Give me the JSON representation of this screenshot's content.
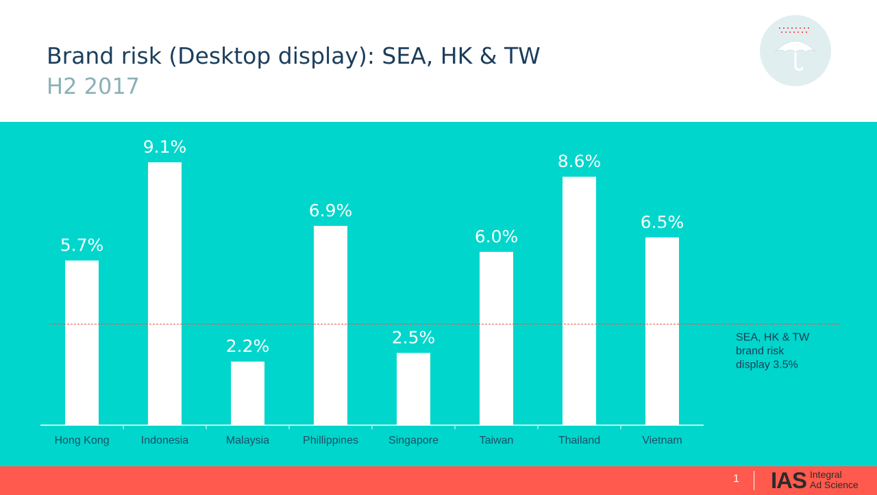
{
  "header": {
    "title": "Brand risk (Desktop display): SEA, HK & TW",
    "subtitle": "H2 2017",
    "logo_icon": "umbrella-icon"
  },
  "chart_data": {
    "type": "bar",
    "categories": [
      "Hong Kong",
      "Indonesia",
      "Malaysia",
      "Phillippines",
      "Singapore",
      "Taiwan",
      "Thailand",
      "Vietnam"
    ],
    "values": [
      5.7,
      9.1,
      2.2,
      6.9,
      2.5,
      6.0,
      8.6,
      6.5
    ],
    "data_labels": [
      "5.7%",
      "9.1%",
      "2.2%",
      "6.9%",
      "2.5%",
      "6.0%",
      "8.6%",
      "6.5%"
    ],
    "unit": "%",
    "ylim": [
      0,
      10.5
    ],
    "grid": false,
    "reference_line": {
      "value": 3.5,
      "label_lines": [
        "SEA, HK & TW",
        "brand risk",
        "display 3.5%"
      ],
      "color": "#e8504a"
    },
    "bar_color": "#ffffff",
    "background_color": "#00d6cb"
  },
  "footer": {
    "page_number": "1",
    "brand_mark": "IAS",
    "brand_name_line1": "Integral",
    "brand_name_line2": "Ad Science",
    "background_color": "#ff5a4d"
  }
}
